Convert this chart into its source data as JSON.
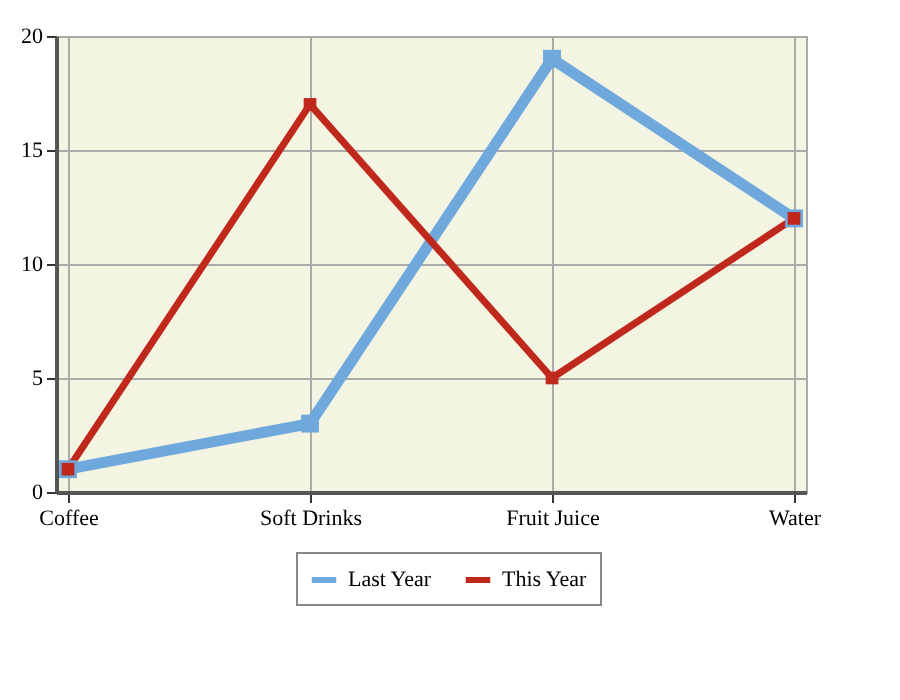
{
  "chart_data": {
    "type": "line",
    "categories": [
      "Coffee",
      "Soft Drinks",
      "Fruit Juice",
      "Water"
    ],
    "series": [
      {
        "name": "Last Year",
        "color": "#6fa8dc",
        "values": [
          1,
          3,
          19,
          12
        ]
      },
      {
        "name": "This Year",
        "color": "#c0281c",
        "values": [
          1,
          17,
          5,
          12
        ]
      }
    ],
    "ylim": [
      0,
      20
    ],
    "yticks": [
      0,
      5,
      10,
      15,
      20
    ],
    "grid": true,
    "legend": "bottom",
    "marker": "square",
    "line_style": "solid"
  }
}
